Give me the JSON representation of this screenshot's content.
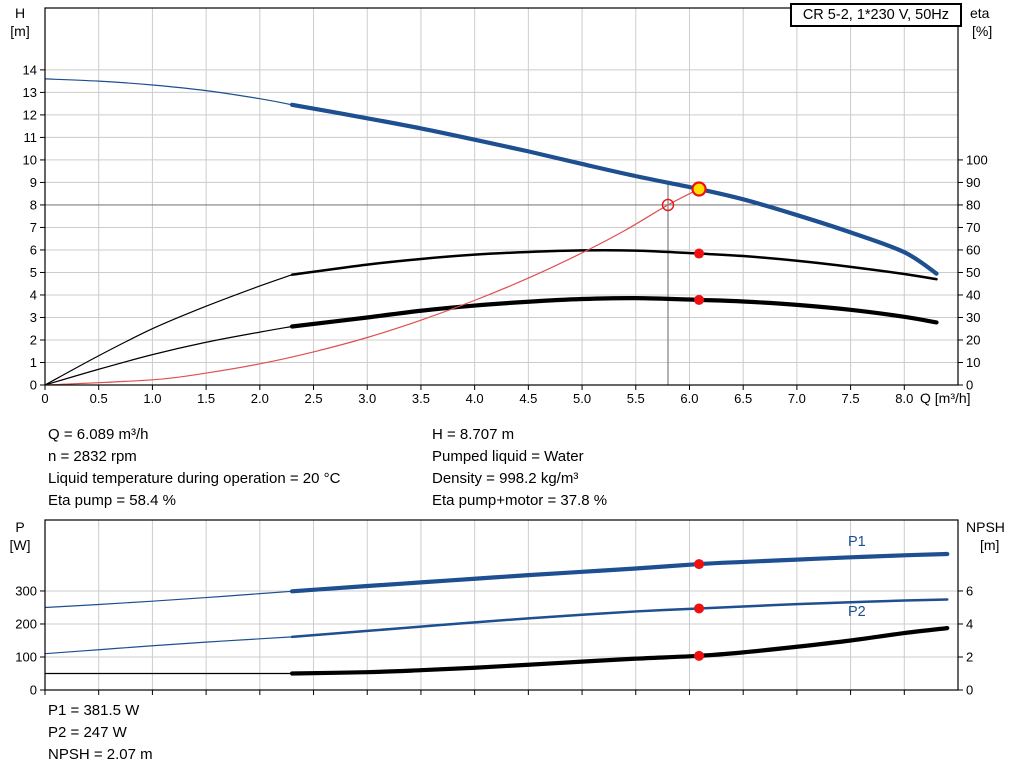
{
  "title_box": "CR 5-2, 1*230 V, 50Hz",
  "colors": {
    "curve_blue": "#1d4f91",
    "curve_black": "#000000",
    "curve_red": "#e05050",
    "marker_red": "#ee1111",
    "marker_yellow": "#ffdf00",
    "grid": "#cccccc",
    "ref_line": "#808080",
    "frame": "#000000"
  },
  "top_chart": {
    "y_left_title": [
      "H",
      "[m]"
    ],
    "y_right_title": [
      "eta",
      "[%]"
    ],
    "x_title": "Q [m³/h]",
    "x_ticks": [
      "0",
      "0.5",
      "1.0",
      "1.5",
      "2.0",
      "2.5",
      "3.0",
      "3.5",
      "4.0",
      "4.5",
      "5.0",
      "5.5",
      "6.0",
      "6.5",
      "7.0",
      "7.5",
      "8.0"
    ],
    "y_left_ticks": [
      "0",
      "1",
      "2",
      "3",
      "4",
      "5",
      "6",
      "7",
      "8",
      "9",
      "10",
      "11",
      "12",
      "13",
      "14"
    ],
    "y_right_ticks": [
      "0",
      "10",
      "20",
      "30",
      "40",
      "50",
      "60",
      "70",
      "80",
      "90",
      "100"
    ]
  },
  "bottom_chart": {
    "y_left_title": [
      "P",
      "[W]"
    ],
    "y_right_title": [
      "NPSH",
      "[m]"
    ],
    "y_left_ticks": [
      "0",
      "100",
      "200",
      "300"
    ],
    "y_right_ticks": [
      "0",
      "2",
      "4",
      "6"
    ],
    "p1_label": "P1",
    "p2_label": "P2"
  },
  "info_top_left": [
    "Q = 6.089 m³/h",
    "n = 2832 rpm",
    "Liquid temperature during operation = 20 °C",
    "Eta pump = 58.4 %"
  ],
  "info_top_right": [
    "H = 8.707 m",
    "Pumped liquid = Water",
    "Density = 998.2 kg/m³",
    "Eta pump+motor = 37.8 %"
  ],
  "info_bottom": [
    "P1 = 381.5 W",
    "P2 = 247 W",
    "NPSH = 2.07 m"
  ],
  "chart_data": [
    {
      "type": "line",
      "title": "CR 5-2, 1*230 V, 50Hz",
      "xlabel": "Q [m³/h]",
      "ylabel_left": "H [m]",
      "ylabel_right": "eta [%]",
      "xlim": [
        0,
        8.5
      ],
      "ylim_left": [
        0,
        16.75
      ],
      "right_axis_scale": "eta% plotted at H = eta/10 (100% aligns with H=10)",
      "grid": true,
      "series": [
        {
          "name": "Eta pump low-flow segment",
          "axis": "eta",
          "color": "black",
          "weight": "thin",
          "points": [
            [
              0,
              0
            ],
            [
              0.5,
              13
            ],
            [
              1.0,
              25
            ],
            [
              1.5,
              35
            ],
            [
              2.0,
              44
            ],
            [
              2.3,
              49
            ]
          ]
        },
        {
          "name": "Eta pump",
          "axis": "eta",
          "color": "black",
          "weight": "medium",
          "points": [
            [
              2.3,
              49
            ],
            [
              3.0,
              53.5
            ],
            [
              3.5,
              56
            ],
            [
              4.0,
              57.9
            ],
            [
              4.5,
              59.1
            ],
            [
              5.0,
              59.8
            ],
            [
              5.5,
              59.7
            ],
            [
              6.089,
              58.4
            ],
            [
              6.5,
              57.3
            ],
            [
              7.0,
              55.2
            ],
            [
              7.5,
              52.5
            ],
            [
              8.0,
              49.3
            ],
            [
              8.3,
              47
            ]
          ]
        },
        {
          "name": "Eta pump+motor low-flow segment",
          "axis": "eta",
          "color": "black",
          "weight": "thin",
          "points": [
            [
              0,
              0
            ],
            [
              0.5,
              7
            ],
            [
              1.0,
              13.5
            ],
            [
              1.5,
              19
            ],
            [
              2.0,
              23.5
            ],
            [
              2.3,
              26
            ]
          ]
        },
        {
          "name": "Eta pump+motor",
          "axis": "eta",
          "color": "black",
          "weight": "thick",
          "points": [
            [
              2.3,
              26
            ],
            [
              3.0,
              30
            ],
            [
              3.5,
              33
            ],
            [
              4.0,
              35.3
            ],
            [
              4.5,
              37
            ],
            [
              5.0,
              38.2
            ],
            [
              5.5,
              38.6
            ],
            [
              6.089,
              37.8
            ],
            [
              6.5,
              37.1
            ],
            [
              7.0,
              35.6
            ],
            [
              7.5,
              33.4
            ],
            [
              8.0,
              30.3
            ],
            [
              8.3,
              27.8
            ]
          ]
        },
        {
          "name": "System curve",
          "axis": "H",
          "color": "red",
          "weight": "thin",
          "points": [
            [
              0,
              0
            ],
            [
              1.0,
              0.23
            ],
            [
              1.5,
              0.53
            ],
            [
              2.0,
              0.94
            ],
            [
              2.5,
              1.47
            ],
            [
              3.0,
              2.11
            ],
            [
              3.5,
              2.88
            ],
            [
              4.0,
              3.76
            ],
            [
              4.5,
              4.75
            ],
            [
              5.0,
              5.87
            ],
            [
              5.4,
              6.87
            ],
            [
              5.8,
              8.0
            ],
            [
              6.089,
              8.707
            ]
          ]
        },
        {
          "name": "QH curve low-flow segment",
          "axis": "H",
          "color": "blue",
          "weight": "thin",
          "points": [
            [
              0,
              13.6
            ],
            [
              0.5,
              13.5
            ],
            [
              1.0,
              13.33
            ],
            [
              1.5,
              13.08
            ],
            [
              2.0,
              12.72
            ],
            [
              2.3,
              12.45
            ]
          ]
        },
        {
          "name": "QH curve",
          "axis": "H",
          "color": "blue",
          "weight": "thick",
          "points": [
            [
              2.3,
              12.45
            ],
            [
              3.0,
              11.85
            ],
            [
              3.5,
              11.4
            ],
            [
              4.0,
              10.9
            ],
            [
              4.5,
              10.38
            ],
            [
              5.0,
              9.82
            ],
            [
              5.5,
              9.28
            ],
            [
              6.089,
              8.707
            ],
            [
              6.5,
              8.25
            ],
            [
              7.0,
              7.55
            ],
            [
              7.5,
              6.78
            ],
            [
              8.0,
              5.9
            ],
            [
              8.3,
              4.95
            ]
          ]
        }
      ],
      "ref_lines": {
        "head_m": 8.0,
        "flow_m3h": 5.8,
        "flow_top_m": 8.98
      },
      "markers": [
        {
          "name": "eta-pump-point",
          "q": 6.089,
          "value": 58.4,
          "axis": "eta",
          "style": "red-dot"
        },
        {
          "name": "eta-pump-motor-point",
          "q": 6.089,
          "value": 37.8,
          "axis": "eta",
          "style": "red-dot"
        },
        {
          "name": "requested-duty-point",
          "q": 5.8,
          "value": 8.0,
          "axis": "H",
          "style": "open-red-circle"
        },
        {
          "name": "operating-point",
          "q": 6.089,
          "value": 8.707,
          "axis": "H",
          "style": "yellow-red-ring"
        }
      ]
    },
    {
      "type": "line",
      "ylabel_left": "P [W]",
      "ylabel_right": "NPSH [m]",
      "xlim": [
        0,
        8.5
      ],
      "ylim_left": [
        0,
        515
      ],
      "right_axis_scale": "NPSH m plotted at W = NPSH*50 (6 m aligns with 300 W)",
      "grid": true,
      "series": [
        {
          "name": "NPSH low-flow segment",
          "axis": "NPSH",
          "color": "black",
          "weight": "thin",
          "points": [
            [
              0,
              1.0
            ],
            [
              1.0,
              1.0
            ],
            [
              2.0,
              1.0
            ],
            [
              2.3,
              1.0
            ]
          ]
        },
        {
          "name": "NPSH",
          "axis": "NPSH",
          "color": "black",
          "weight": "thick",
          "points": [
            [
              2.3,
              1.0
            ],
            [
              3.0,
              1.08
            ],
            [
              3.5,
              1.2
            ],
            [
              4.0,
              1.35
            ],
            [
              4.5,
              1.53
            ],
            [
              5.0,
              1.72
            ],
            [
              5.5,
              1.9
            ],
            [
              6.089,
              2.07
            ],
            [
              6.5,
              2.28
            ],
            [
              7.0,
              2.62
            ],
            [
              7.5,
              3.0
            ],
            [
              8.0,
              3.45
            ],
            [
              8.4,
              3.75
            ]
          ]
        },
        {
          "name": "P2 low-flow segment",
          "axis": "W",
          "color": "blue",
          "weight": "thin",
          "points": [
            [
              0,
              110
            ],
            [
              0.5,
              122
            ],
            [
              1.0,
              134
            ],
            [
              1.5,
              145
            ],
            [
              2.0,
              155
            ],
            [
              2.3,
              161
            ]
          ]
        },
        {
          "name": "P2",
          "axis": "W",
          "color": "blue",
          "weight": "medium",
          "points": [
            [
              2.3,
              161
            ],
            [
              3.0,
              179
            ],
            [
              3.5,
              192
            ],
            [
              4.0,
              205
            ],
            [
              4.5,
              217
            ],
            [
              5.0,
              228
            ],
            [
              5.5,
              238
            ],
            [
              6.089,
              247
            ],
            [
              6.5,
              253
            ],
            [
              7.0,
              260
            ],
            [
              7.5,
              266
            ],
            [
              8.0,
              271
            ],
            [
              8.4,
              274
            ]
          ]
        },
        {
          "name": "P1 low-flow segment",
          "axis": "W",
          "color": "blue",
          "weight": "thin",
          "points": [
            [
              0,
              250
            ],
            [
              0.5,
              259
            ],
            [
              1.0,
              269
            ],
            [
              1.5,
              280
            ],
            [
              2.0,
              292
            ],
            [
              2.3,
              299
            ]
          ]
        },
        {
          "name": "P1",
          "axis": "W",
          "color": "blue",
          "weight": "thick",
          "points": [
            [
              2.3,
              299
            ],
            [
              3.0,
              315
            ],
            [
              3.5,
              326
            ],
            [
              4.0,
              337
            ],
            [
              4.5,
              348
            ],
            [
              5.0,
              358
            ],
            [
              5.5,
              368
            ],
            [
              6.089,
              381.5
            ],
            [
              6.5,
              388
            ],
            [
              7.0,
              395
            ],
            [
              7.5,
              402
            ],
            [
              8.0,
              408
            ],
            [
              8.4,
              412
            ]
          ]
        }
      ],
      "markers": [
        {
          "name": "p1-point",
          "q": 6.089,
          "value": 381.5,
          "axis": "W",
          "style": "red-dot"
        },
        {
          "name": "p2-point",
          "q": 6.089,
          "value": 247,
          "axis": "W",
          "style": "red-dot"
        },
        {
          "name": "npsh-point",
          "q": 6.089,
          "value": 2.07,
          "axis": "NPSH",
          "style": "red-dot"
        }
      ]
    }
  ]
}
